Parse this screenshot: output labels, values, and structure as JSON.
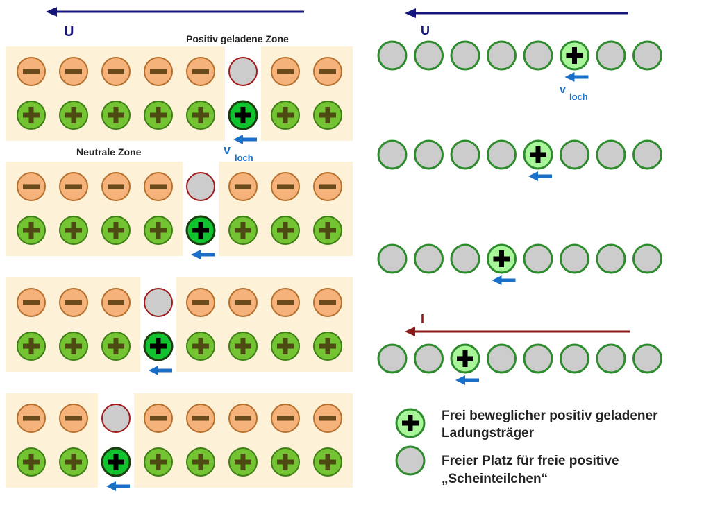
{
  "colors": {
    "panel": "#fdf1d8",
    "minus_fill": "#f5b27a",
    "minus_stroke": "#b5702e",
    "minus_sign": "#6b4a1c",
    "plus_fill": "#73c332",
    "plus_stroke": "#3e7e16",
    "plus_sign": "#4e4a14",
    "hole_fill": "#cccccc",
    "hole_stroke": "#a11c1c",
    "free_fill": "#0fc22e",
    "free_stroke": "#1b3d10",
    "site_fill": "#cccccc",
    "site_stroke": "#2e8b2e",
    "carrier_fill": "#a8f59a",
    "carrier_stroke": "#2e8b2e",
    "velocity_arrow": "#1a6fc9",
    "voltage_arrow": "#15157a",
    "current_arrow": "#8b1a1a",
    "label_blue": "#1a6fc9"
  },
  "left": {
    "voltage_label": "U",
    "positive_zone_label": "Positiv geladene Zone",
    "neutral_zone_label": "Neutrale Zone",
    "velocity_label": "v",
    "velocity_subscript": "loch",
    "rows": [
      {
        "hole_index": 5
      },
      {
        "hole_index": 4
      },
      {
        "hole_index": 3
      },
      {
        "hole_index": 2
      }
    ]
  },
  "right": {
    "voltage_label": "U",
    "current_label": "I",
    "velocity_label": "v",
    "velocity_subscript": "loch",
    "rows": [
      {
        "carrier_index": 5
      },
      {
        "carrier_index": 4
      },
      {
        "carrier_index": 3
      },
      {
        "carrier_index": 2
      }
    ]
  },
  "legend": {
    "carrier_line1": "Frei beweglicher positiv geladener",
    "carrier_line2": "Ladungsträger",
    "site_line1": "Freier Platz für freie positive",
    "site_line2": "„Scheinteilchen“"
  }
}
